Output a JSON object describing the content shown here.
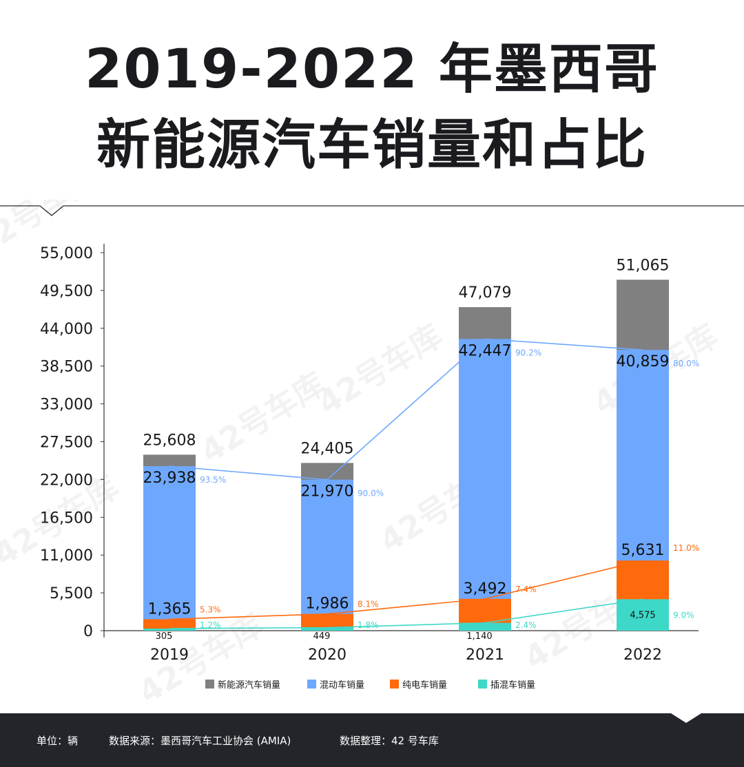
{
  "title": {
    "line1": "2019-2022 年墨西哥",
    "line2": "新能源汽车销量和占比"
  },
  "watermark": "42号车库",
  "footer": {
    "unit": "单位：辆",
    "source": "数据来源：墨西哥汽车工业协会 (AMIA)",
    "compiled": "数据整理：42 号车库"
  },
  "colors": {
    "total": "#808080",
    "hybrid": "#6ea8fe",
    "bev": "#ff6a0d",
    "phev": "#3ed8c8",
    "footer_bg": "#23252b"
  },
  "chart_data": {
    "type": "bar",
    "stacked": true,
    "categories": [
      "2019",
      "2020",
      "2021",
      "2022"
    ],
    "ylim": [
      0,
      55000
    ],
    "yticks": [
      0,
      5500,
      11000,
      16500,
      22000,
      27500,
      33000,
      38500,
      44000,
      49500,
      55000
    ],
    "ytick_labels": [
      "0",
      "5,500",
      "11,000",
      "16,500",
      "22,000",
      "27,500",
      "33,000",
      "38,500",
      "44,000",
      "49,500",
      "55,000"
    ],
    "totals": [
      25608,
      24405,
      47079,
      51065
    ],
    "total_labels": [
      "25,608",
      "24,405",
      "47,079",
      "51,065"
    ],
    "series": [
      {
        "name": "插混车销量",
        "key": "phev",
        "values": [
          305,
          449,
          1140,
          4575
        ],
        "labels": [
          "305",
          "449",
          "1,140",
          "4,575"
        ],
        "shares": [
          1.2,
          1.8,
          2.4,
          9.0
        ],
        "share_labels": [
          "1.2%",
          "1.8%",
          "2.4%",
          "9.0%"
        ]
      },
      {
        "name": "纯电车销量",
        "key": "bev",
        "values": [
          1365,
          1986,
          3492,
          5631
        ],
        "labels": [
          "1,365",
          "1,986",
          "3,492",
          "5,631"
        ],
        "shares": [
          5.3,
          8.1,
          7.4,
          11.0
        ],
        "share_labels": [
          "5.3%",
          "8.1%",
          "7.4%",
          "11.0%"
        ]
      },
      {
        "name": "混动车销量",
        "key": "hybrid",
        "values": [
          23938,
          21970,
          42447,
          40859
        ],
        "labels": [
          "23,938",
          "21,970",
          "42,447",
          "40,859"
        ],
        "shares": [
          93.5,
          90.0,
          90.2,
          80.0
        ],
        "share_labels": [
          "93.5%",
          "90.0%",
          "90.2%",
          "80.0%"
        ]
      }
    ],
    "legend": [
      {
        "label": "新能源汽车销量",
        "key": "total"
      },
      {
        "label": "混动车销量",
        "key": "hybrid"
      },
      {
        "label": "纯电车销量",
        "key": "bev"
      },
      {
        "label": "插混车销量",
        "key": "phev"
      }
    ],
    "legend_position": "bottom"
  }
}
